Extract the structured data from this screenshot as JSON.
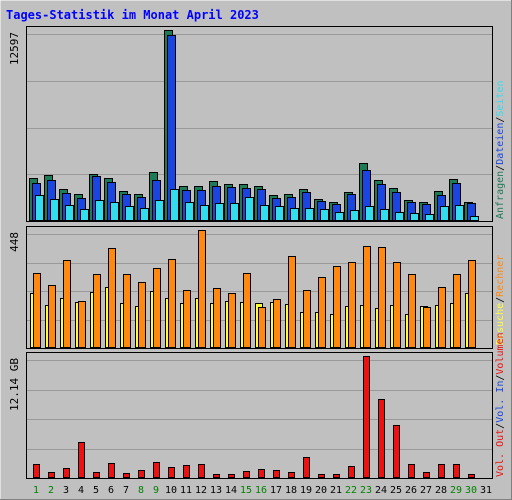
{
  "title": "Tages-Statistik im Monat April 2023",
  "colors": {
    "background": "#c0c0c0",
    "title": "#0000ff",
    "anfragen": "#1f7a58",
    "dateien": "#1a45e0",
    "seiten": "#33ddee",
    "besuche": "#ffff33",
    "rechner": "#ff8811",
    "volumen": "#ee1111",
    "day_normal": "#000000",
    "day_weekend": "#008000",
    "legend_sep": "#000000"
  },
  "legend_top": [
    {
      "text": "Anfragen",
      "color_key": "anfragen"
    },
    {
      "text": "Dateien",
      "color_key": "dateien"
    },
    {
      "text": "Seiten",
      "color_key": "seiten"
    }
  ],
  "legend_mid": [
    {
      "text": "Besuche",
      "color_key": "besuche"
    },
    {
      "text": "Rechner",
      "color_key": "rechner"
    }
  ],
  "legend_bot": [
    {
      "text": "Vol. Out",
      "color_key": "volumen"
    },
    {
      "text": "Vol. In",
      "color_key": "dateien"
    },
    {
      "text": "Volumen",
      "color_key": "volumen"
    }
  ],
  "chart_data": [
    {
      "type": "bar",
      "y_max_label": "12597",
      "ylim": [
        0,
        12597
      ],
      "grid": true,
      "categories": [
        "1",
        "2",
        "3",
        "4",
        "5",
        "6",
        "7",
        "8",
        "9",
        "10",
        "11",
        "12",
        "13",
        "14",
        "15",
        "16",
        "17",
        "18",
        "19",
        "20",
        "21",
        "22",
        "23",
        "24",
        "25",
        "26",
        "27",
        "28",
        "29",
        "30",
        "31"
      ],
      "series": [
        {
          "name": "Anfragen",
          "values": [
            2860,
            3010,
            2140,
            1770,
            3130,
            2860,
            2010,
            1770,
            3200,
            12597,
            2320,
            2320,
            2620,
            2470,
            2470,
            2320,
            1700,
            1770,
            2080,
            1470,
            1240,
            1930,
            3840,
            2690,
            2160,
            1390,
            1240,
            2000,
            2770,
            1240,
            0
          ]
        },
        {
          "name": "Dateien",
          "values": [
            2500,
            2730,
            1870,
            1500,
            2990,
            2590,
            1770,
            1570,
            2730,
            12300,
            2050,
            2050,
            2320,
            2250,
            2180,
            2120,
            1500,
            1570,
            1930,
            1350,
            1140,
            1770,
            3340,
            2460,
            1930,
            1240,
            1140,
            1700,
            2520,
            1160,
            0
          ]
        },
        {
          "name": "Seiten",
          "values": [
            1700,
            1470,
            1040,
            770,
            1390,
            1240,
            960,
            890,
            1390,
            2120,
            1240,
            1080,
            1160,
            1160,
            1580,
            1040,
            1000,
            830,
            890,
            770,
            620,
            730,
            1000,
            770,
            620,
            560,
            460,
            960,
            1040,
            310,
            0
          ]
        }
      ]
    },
    {
      "type": "bar",
      "y_max_label": "448",
      "ylim": [
        0,
        448
      ],
      "grid": true,
      "categories": [
        "1",
        "2",
        "3",
        "4",
        "5",
        "6",
        "7",
        "8",
        "9",
        "10",
        "11",
        "12",
        "13",
        "14",
        "15",
        "16",
        "17",
        "18",
        "19",
        "20",
        "21",
        "22",
        "23",
        "24",
        "25",
        "26",
        "27",
        "28",
        "29",
        "30",
        "31"
      ],
      "series": [
        {
          "name": "Besuche",
          "values": [
            210,
            162,
            190,
            176,
            214,
            230,
            172,
            160,
            215,
            190,
            170,
            190,
            170,
            180,
            175,
            172,
            173,
            168,
            135,
            138,
            130,
            160,
            165,
            150,
            163,
            130,
            158,
            165,
            170,
            210,
            0
          ]
        },
        {
          "name": "Rechner",
          "values": [
            285,
            240,
            335,
            180,
            280,
            378,
            280,
            250,
            303,
            338,
            220,
            448,
            228,
            210,
            285,
            155,
            185,
            350,
            220,
            270,
            310,
            325,
            388,
            383,
            325,
            280,
            156,
            230,
            280,
            333,
            0
          ]
        }
      ]
    },
    {
      "type": "bar",
      "y_max_label": "12.14 GB",
      "ylim": [
        0,
        12.14
      ],
      "grid": true,
      "categories": [
        "1",
        "2",
        "3",
        "4",
        "5",
        "6",
        "7",
        "8",
        "9",
        "10",
        "11",
        "12",
        "13",
        "14",
        "15",
        "16",
        "17",
        "18",
        "19",
        "20",
        "21",
        "22",
        "23",
        "24",
        "25",
        "26",
        "27",
        "28",
        "29",
        "30",
        "31"
      ],
      "series": [
        {
          "name": "Volumen",
          "values": [
            1.4,
            0.55,
            0.95,
            3.55,
            0.6,
            1.5,
            0.45,
            0.75,
            1.6,
            1.1,
            1.25,
            1.35,
            0.4,
            0.4,
            0.65,
            0.9,
            0.75,
            0.55,
            2.1,
            0.35,
            0.35,
            1.15,
            12.14,
            7.85,
            5.25,
            1.35,
            0.6,
            1.35,
            1.35,
            0.4,
            0
          ]
        }
      ]
    }
  ],
  "days": [
    {
      "label": "1",
      "weekend": true
    },
    {
      "label": "2",
      "weekend": true
    },
    {
      "label": "3",
      "weekend": false
    },
    {
      "label": "4",
      "weekend": false
    },
    {
      "label": "5",
      "weekend": false
    },
    {
      "label": "6",
      "weekend": false
    },
    {
      "label": "7",
      "weekend": false
    },
    {
      "label": "8",
      "weekend": true
    },
    {
      "label": "9",
      "weekend": true
    },
    {
      "label": "10",
      "weekend": false
    },
    {
      "label": "11",
      "weekend": false
    },
    {
      "label": "12",
      "weekend": false
    },
    {
      "label": "13",
      "weekend": false
    },
    {
      "label": "14",
      "weekend": false
    },
    {
      "label": "15",
      "weekend": true
    },
    {
      "label": "16",
      "weekend": true
    },
    {
      "label": "17",
      "weekend": false
    },
    {
      "label": "18",
      "weekend": false
    },
    {
      "label": "19",
      "weekend": false
    },
    {
      "label": "20",
      "weekend": false
    },
    {
      "label": "21",
      "weekend": false
    },
    {
      "label": "22",
      "weekend": true
    },
    {
      "label": "23",
      "weekend": true
    },
    {
      "label": "24",
      "weekend": false
    },
    {
      "label": "25",
      "weekend": false
    },
    {
      "label": "26",
      "weekend": false
    },
    {
      "label": "27",
      "weekend": false
    },
    {
      "label": "28",
      "weekend": false
    },
    {
      "label": "29",
      "weekend": true
    },
    {
      "label": "30",
      "weekend": true
    },
    {
      "label": "31",
      "weekend": false
    }
  ]
}
